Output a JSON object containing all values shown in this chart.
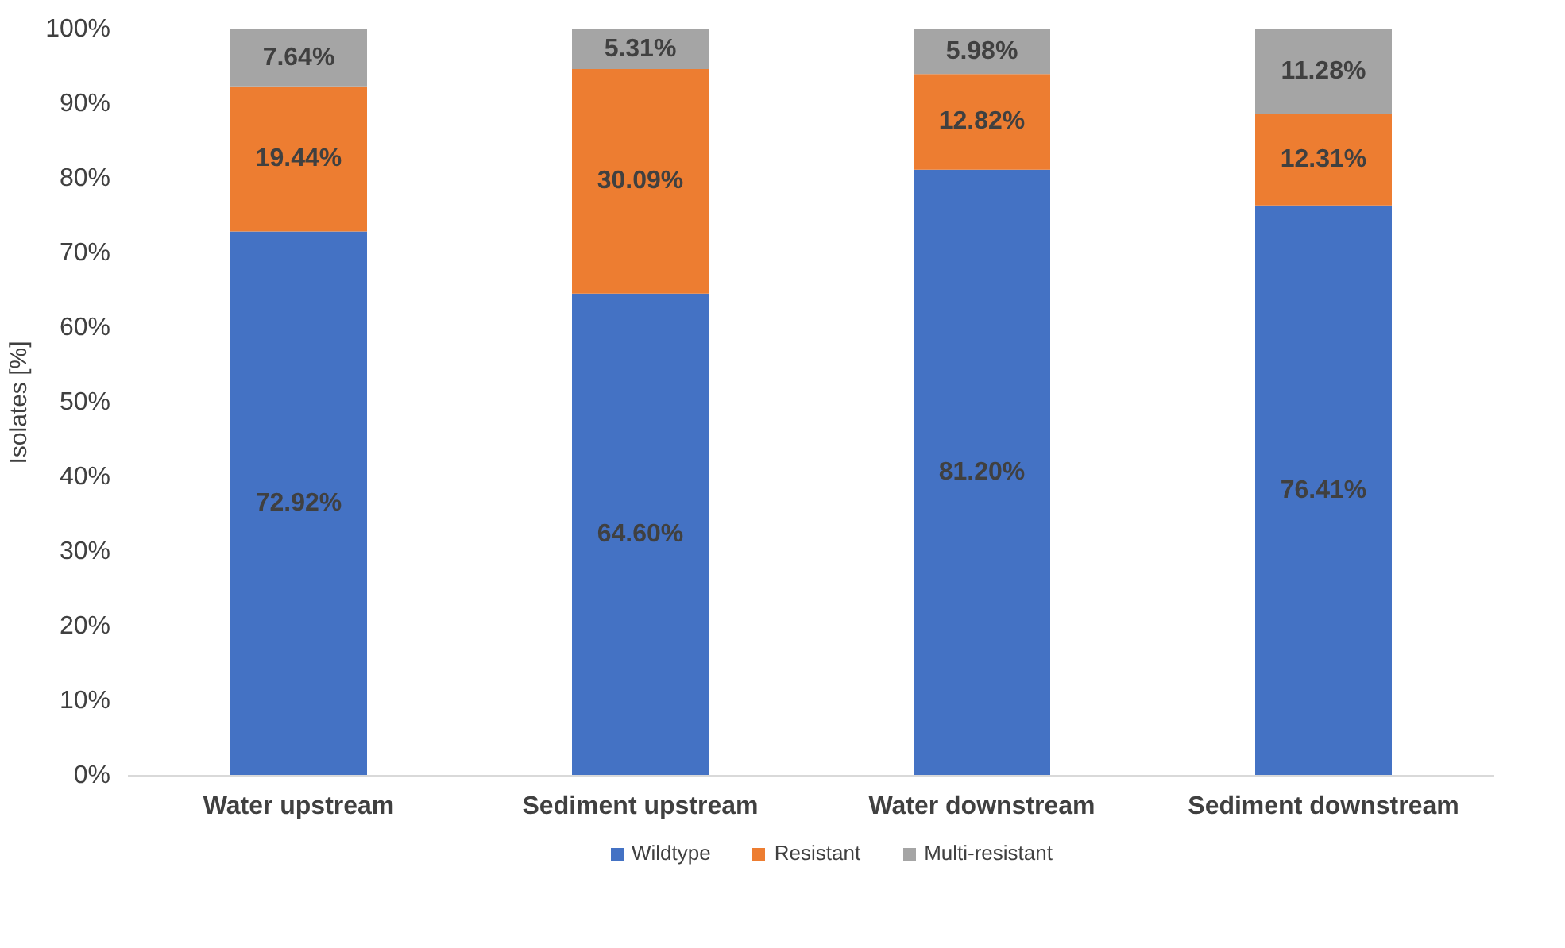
{
  "chart_data": {
    "type": "bar",
    "stacked": true,
    "ylabel": "Isolates [%]",
    "categories": [
      "Water upstream",
      "Sediment upstream",
      "Water downstream",
      "Sediment downstream"
    ],
    "series": [
      {
        "name": "Wildtype",
        "color": "#4472c4",
        "values": [
          72.92,
          64.6,
          81.2,
          76.41
        ],
        "value_labels": [
          "72.92%",
          "64.60%",
          "81.20%",
          "76.41%"
        ]
      },
      {
        "name": "Resistant",
        "color": "#ed7d31",
        "values": [
          19.44,
          30.09,
          12.82,
          12.31
        ],
        "value_labels": [
          "19.44%",
          "30.09%",
          "12.82%",
          "12.31%"
        ]
      },
      {
        "name": "Multi-resistant",
        "color": "#a5a5a5",
        "values": [
          7.64,
          5.31,
          5.98,
          11.28
        ],
        "value_labels": [
          "7.64%",
          "5.31%",
          "5.98%",
          "11.28%"
        ]
      }
    ],
    "ylim": [
      0,
      100
    ],
    "yticks": [
      {
        "value": 0,
        "label": "0%"
      },
      {
        "value": 10,
        "label": "10%"
      },
      {
        "value": 20,
        "label": "20%"
      },
      {
        "value": 30,
        "label": "30%"
      },
      {
        "value": 40,
        "label": "40%"
      },
      {
        "value": 50,
        "label": "50%"
      },
      {
        "value": 60,
        "label": "60%"
      },
      {
        "value": 70,
        "label": "70%"
      },
      {
        "value": 80,
        "label": "80%"
      },
      {
        "value": 90,
        "label": "90%"
      },
      {
        "value": 100,
        "label": "100%"
      }
    ],
    "grid": false,
    "legend": "bottom"
  }
}
